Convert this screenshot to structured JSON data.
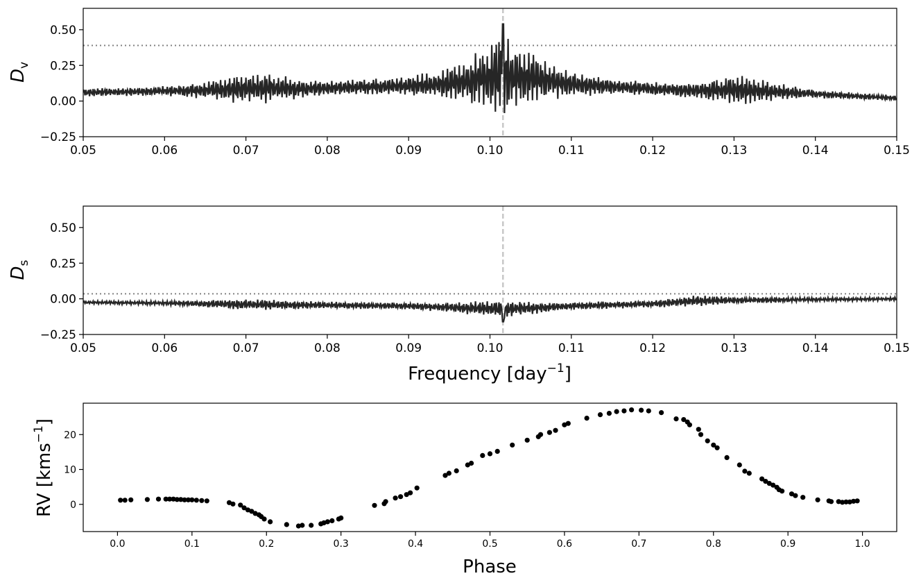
{
  "colors": {
    "line": "#262626",
    "marker": "#000000",
    "threshold": "#808080",
    "frequency_marker": "#c8c8c8"
  },
  "chart_data": [
    {
      "type": "line",
      "panel": "top",
      "ylabel": "D",
      "ylabel_sub": "v",
      "xlim": [
        0.05,
        0.15
      ],
      "ylim": [
        -0.25,
        0.65
      ],
      "xticks": [
        0.05,
        0.06,
        0.07,
        0.08,
        0.09,
        0.1,
        0.11,
        0.12,
        0.13,
        0.14,
        0.15
      ],
      "xtick_labels": [
        "0.05",
        "0.06",
        "0.07",
        "0.08",
        "0.09",
        "0.10",
        "0.11",
        "0.12",
        "0.13",
        "0.14",
        "0.15"
      ],
      "yticks": [
        -0.25,
        0.0,
        0.25,
        0.5
      ],
      "ytick_labels": [
        "−0.25",
        "0.00",
        "0.25",
        "0.50"
      ],
      "threshold": 0.39,
      "marker_frequency": 0.1016,
      "envelope": {
        "x": [
          0.05,
          0.055,
          0.06,
          0.065,
          0.07,
          0.073,
          0.076,
          0.08,
          0.085,
          0.09,
          0.095,
          0.098,
          0.1,
          0.1016,
          0.103,
          0.105,
          0.11,
          0.115,
          0.12,
          0.125,
          0.13,
          0.135,
          0.14,
          0.145,
          0.15
        ],
        "base": [
          0.06,
          0.065,
          0.07,
          0.075,
          0.085,
          0.09,
          0.085,
          0.09,
          0.1,
          0.105,
          0.12,
          0.15,
          0.17,
          0.18,
          0.17,
          0.16,
          0.12,
          0.1,
          0.085,
          0.075,
          0.08,
          0.065,
          0.05,
          0.035,
          0.02
        ],
        "amplitude": [
          0.03,
          0.03,
          0.035,
          0.06,
          0.11,
          0.11,
          0.08,
          0.05,
          0.06,
          0.07,
          0.12,
          0.2,
          0.22,
          0.35,
          0.22,
          0.2,
          0.09,
          0.06,
          0.05,
          0.06,
          0.11,
          0.07,
          0.03,
          0.025,
          0.02
        ]
      }
    },
    {
      "type": "line",
      "panel": "middle",
      "ylabel": "D",
      "ylabel_sub": "s",
      "xlabel": "Frequency [day",
      "xlabel_sup": "−1",
      "xlabel_close": "]",
      "xlim": [
        0.05,
        0.15
      ],
      "ylim": [
        -0.25,
        0.65
      ],
      "xticks": [
        0.05,
        0.06,
        0.07,
        0.08,
        0.09,
        0.1,
        0.11,
        0.12,
        0.13,
        0.14,
        0.15
      ],
      "xtick_labels": [
        "0.05",
        "0.06",
        "0.07",
        "0.08",
        "0.09",
        "0.10",
        "0.11",
        "0.12",
        "0.13",
        "0.14",
        "0.15"
      ],
      "yticks": [
        -0.25,
        0.0,
        0.25,
        0.5
      ],
      "ytick_labels": [
        "−0.25",
        "0.00",
        "0.25",
        "0.50"
      ],
      "threshold": 0.035,
      "marker_frequency": 0.1016,
      "envelope": {
        "x": [
          0.05,
          0.06,
          0.07,
          0.08,
          0.09,
          0.095,
          0.1,
          0.1016,
          0.103,
          0.11,
          0.12,
          0.125,
          0.13,
          0.14,
          0.15
        ],
        "base": [
          -0.025,
          -0.03,
          -0.04,
          -0.045,
          -0.05,
          -0.06,
          -0.07,
          -0.075,
          -0.07,
          -0.05,
          -0.035,
          -0.015,
          -0.01,
          -0.005,
          0.0
        ],
        "amplitude": [
          0.012,
          0.015,
          0.04,
          0.025,
          0.025,
          0.035,
          0.06,
          0.07,
          0.05,
          0.03,
          0.025,
          0.04,
          0.025,
          0.015,
          0.012
        ]
      }
    },
    {
      "type": "scatter",
      "panel": "bottom",
      "xlabel": "Phase",
      "ylabel": "RV [kms",
      "ylabel_sup": "−1",
      "ylabel_close": "]",
      "xlim": [
        -0.046,
        1.046
      ],
      "ylim": [
        -7.8,
        29.0
      ],
      "xticks": [
        0.0,
        0.1,
        0.2,
        0.3,
        0.4,
        0.5,
        0.6,
        0.7,
        0.8,
        0.9,
        1.0
      ],
      "xtick_labels": [
        "0.0",
        "0.1",
        "0.2",
        "0.3",
        "0.4",
        "0.5",
        "0.6",
        "0.7",
        "0.8",
        "0.9",
        "1.0"
      ],
      "yticks": [
        0,
        10,
        20
      ],
      "ytick_labels": [
        "0",
        "10",
        "20"
      ],
      "x": [
        0.004,
        0.01,
        0.018,
        0.04,
        0.055,
        0.065,
        0.07,
        0.075,
        0.08,
        0.085,
        0.09,
        0.095,
        0.1,
        0.106,
        0.113,
        0.12,
        0.15,
        0.155,
        0.165,
        0.17,
        0.175,
        0.18,
        0.185,
        0.19,
        0.193,
        0.197,
        0.205,
        0.227,
        0.243,
        0.248,
        0.26,
        0.273,
        0.277,
        0.282,
        0.288,
        0.297,
        0.3,
        0.345,
        0.358,
        0.36,
        0.373,
        0.38,
        0.388,
        0.393,
        0.402,
        0.44,
        0.445,
        0.455,
        0.47,
        0.475,
        0.49,
        0.5,
        0.51,
        0.53,
        0.55,
        0.565,
        0.568,
        0.58,
        0.588,
        0.6,
        0.605,
        0.63,
        0.648,
        0.66,
        0.67,
        0.68,
        0.69,
        0.703,
        0.713,
        0.73,
        0.75,
        0.76,
        0.765,
        0.768,
        0.78,
        0.783,
        0.792,
        0.8,
        0.805,
        0.818,
        0.835,
        0.842,
        0.848,
        0.865,
        0.87,
        0.875,
        0.88,
        0.885,
        0.888,
        0.892,
        0.905,
        0.91,
        0.92,
        0.94,
        0.955,
        0.958,
        0.968,
        0.973,
        0.978,
        0.983,
        0.988,
        0.993
      ],
      "y": [
        1.2,
        1.2,
        1.3,
        1.4,
        1.5,
        1.5,
        1.5,
        1.5,
        1.4,
        1.4,
        1.3,
        1.3,
        1.3,
        1.2,
        1.1,
        1.0,
        0.5,
        0.1,
        -0.2,
        -1.0,
        -1.6,
        -2.0,
        -2.6,
        -3.0,
        -3.5,
        -4.2,
        -5.0,
        -5.8,
        -6.2,
        -6.0,
        -6.0,
        -5.6,
        -5.3,
        -5.0,
        -4.7,
        -4.2,
        -3.9,
        -0.3,
        0.2,
        0.8,
        1.8,
        2.2,
        2.8,
        3.3,
        4.7,
        8.3,
        8.9,
        9.6,
        11.3,
        11.8,
        14.0,
        14.5,
        15.2,
        17.0,
        18.4,
        19.4,
        20.0,
        20.6,
        21.2,
        22.8,
        23.2,
        24.7,
        25.7,
        26.1,
        26.6,
        26.8,
        27.1,
        27.0,
        26.8,
        26.3,
        24.5,
        24.3,
        23.6,
        22.8,
        21.5,
        20.0,
        18.2,
        17.0,
        16.2,
        13.4,
        11.3,
        9.5,
        8.9,
        7.3,
        6.6,
        6.0,
        5.5,
        4.9,
        4.2,
        3.8,
        3.0,
        2.5,
        2.0,
        1.3,
        1.0,
        0.8,
        0.8,
        0.6,
        0.7,
        0.7,
        0.9,
        1.0
      ]
    }
  ]
}
